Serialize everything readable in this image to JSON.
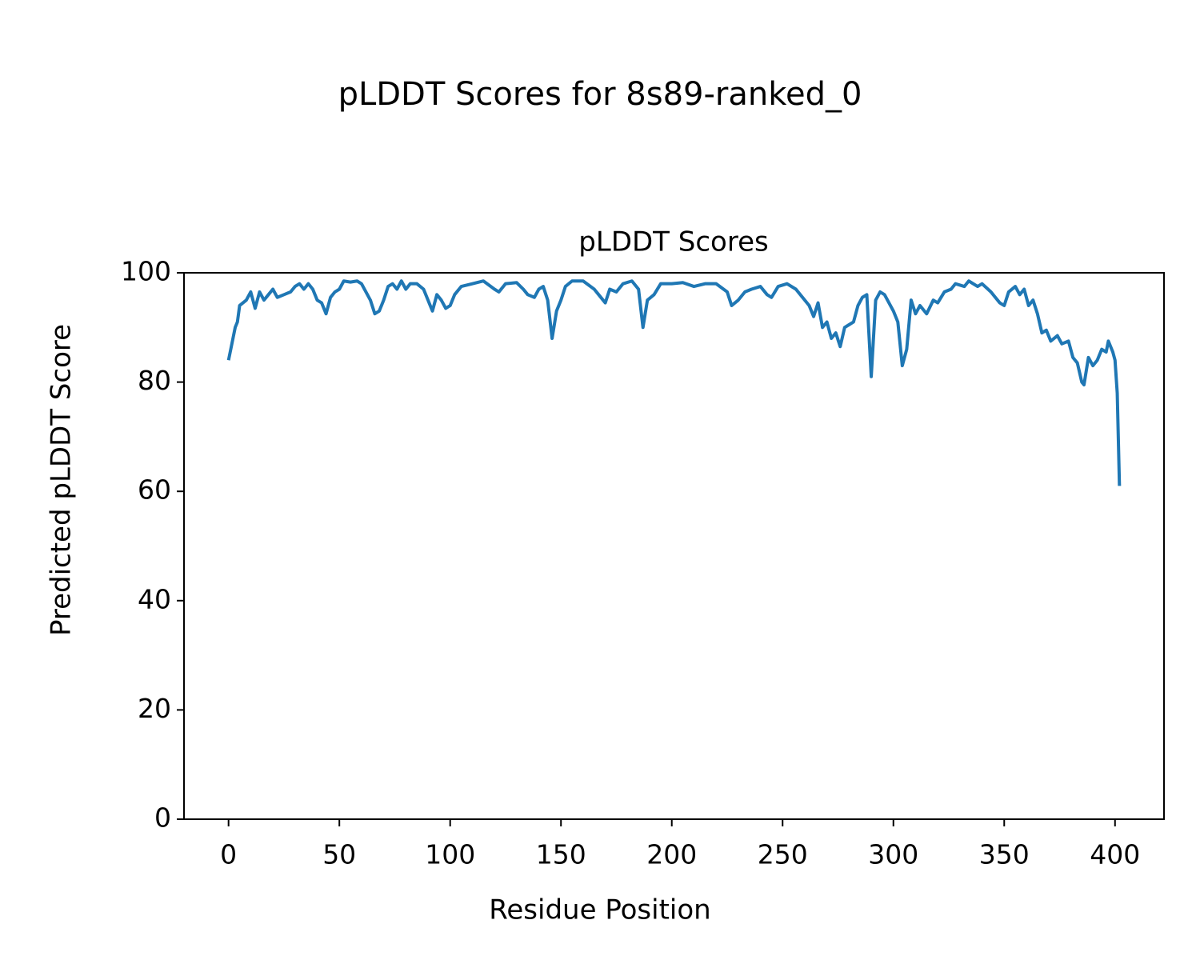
{
  "chart_data": {
    "type": "line",
    "title": "pLDDT Scores for 8s89-ranked_0",
    "subtitle": "pLDDT Scores",
    "xlabel": "Residue Position",
    "ylabel": "Predicted pLDDT Score",
    "xlim": [
      -20.1,
      422.1
    ],
    "ylim": [
      0,
      100
    ],
    "xticks": [
      0,
      50,
      100,
      150,
      200,
      250,
      300,
      350,
      400
    ],
    "yticks": [
      0,
      20,
      40,
      60,
      80,
      100
    ],
    "grid": false,
    "series": [
      {
        "name": "pLDDT",
        "color": "#1f77b4",
        "x": [
          0,
          2,
          3,
          4,
          5,
          8,
          10,
          11,
          12,
          14,
          16,
          18,
          20,
          22,
          25,
          28,
          30,
          32,
          34,
          36,
          38,
          40,
          42,
          44,
          46,
          48,
          50,
          52,
          55,
          58,
          60,
          62,
          64,
          66,
          68,
          70,
          72,
          74,
          76,
          78,
          80,
          82,
          85,
          88,
          90,
          92,
          94,
          96,
          98,
          100,
          102,
          105,
          110,
          115,
          120,
          122,
          125,
          130,
          133,
          135,
          138,
          140,
          142,
          144,
          146,
          148,
          150,
          152,
          155,
          160,
          165,
          167,
          170,
          172,
          175,
          178,
          182,
          185,
          187,
          189,
          192,
          195,
          200,
          205,
          210,
          215,
          220,
          225,
          227,
          230,
          233,
          236,
          240,
          243,
          245,
          248,
          252,
          256,
          259,
          262,
          264,
          266,
          268,
          270,
          272,
          274,
          276,
          278,
          280,
          282,
          284,
          286,
          288,
          290,
          292,
          294,
          296,
          298,
          300,
          302,
          304,
          306,
          308,
          310,
          312,
          315,
          318,
          320,
          323,
          326,
          328,
          332,
          334,
          338,
          340,
          344,
          346,
          348,
          350,
          352,
          355,
          357,
          359,
          361,
          363,
          365,
          367,
          369,
          371,
          374,
          376,
          379,
          381,
          383,
          385,
          386,
          388,
          390,
          392,
          394,
          396,
          397,
          399,
          400,
          401,
          402
        ],
        "values": [
          84,
          88,
          90,
          91,
          94,
          95,
          96.5,
          95,
          93.5,
          96.5,
          95,
          96,
          97,
          95.5,
          96,
          96.5,
          97.5,
          98,
          97,
          98,
          97,
          95,
          94.5,
          92.5,
          95.5,
          96.5,
          97,
          98.5,
          98.3,
          98.5,
          98,
          96.5,
          95,
          92.5,
          93,
          95,
          97.5,
          98,
          97,
          98.5,
          97,
          98,
          98,
          97,
          95,
          93,
          96,
          95,
          93.5,
          94,
          96,
          97.5,
          98,
          98.5,
          97,
          96.5,
          98,
          98.2,
          97,
          96,
          95.5,
          97,
          97.5,
          95,
          88,
          93,
          95,
          97.5,
          98.5,
          98.5,
          97,
          96,
          94.5,
          97,
          96.5,
          98,
          98.5,
          97,
          90,
          95,
          96,
          98,
          98,
          98.2,
          97.5,
          98,
          98,
          96.5,
          94,
          95,
          96.5,
          97,
          97.5,
          96,
          95.5,
          97.5,
          98,
          97,
          95.5,
          94,
          92,
          94.5,
          90,
          91,
          88,
          89,
          86.5,
          90,
          90.5,
          91,
          94,
          95.5,
          96,
          81,
          95,
          96.5,
          96,
          94.5,
          93,
          91,
          83,
          86,
          95,
          92.5,
          94,
          92.5,
          95,
          94.5,
          96.5,
          97,
          98,
          97.5,
          98.5,
          97.5,
          98,
          96.5,
          95.5,
          94.5,
          94,
          96.5,
          97.5,
          96,
          97,
          94,
          95,
          92.5,
          89,
          89.5,
          87.5,
          88.5,
          87,
          87.5,
          84.5,
          83.5,
          80,
          79.5,
          84.5,
          83,
          84,
          86,
          85.5,
          87.5,
          85.5,
          84,
          78,
          61
        ]
      }
    ]
  }
}
